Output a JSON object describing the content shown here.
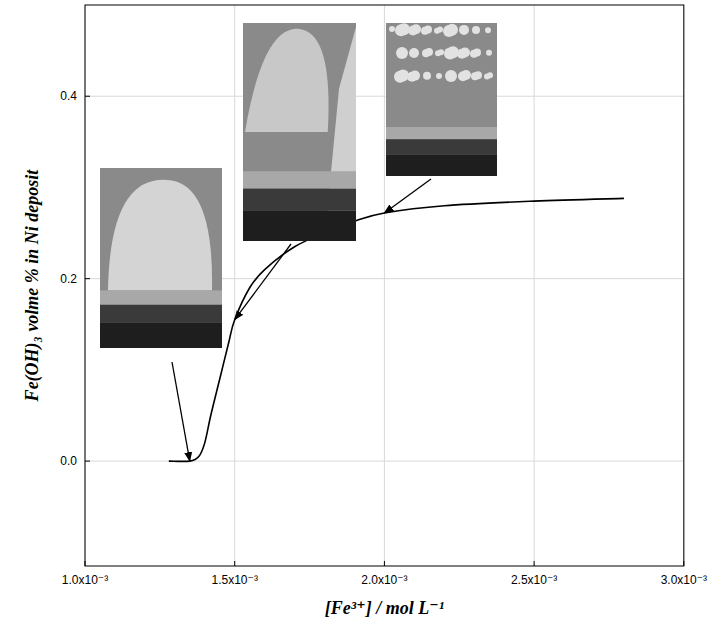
{
  "chart_data": {
    "type": "line",
    "xlabel": "[Fe³⁺] / mol L⁻¹",
    "ylabel": "Fe(OH)₃ volme % in Ni deposit",
    "x": [
      0.00128,
      0.00135,
      0.00138,
      0.0014,
      0.00142,
      0.00145,
      0.00148,
      0.0015,
      0.00155,
      0.0016,
      0.0017,
      0.0018,
      0.0019,
      0.002,
      0.0022,
      0.0025,
      0.0028
    ],
    "series": [
      {
        "color": "#000000",
        "values": [
          0,
          0,
          0.005,
          0.02,
          0.05,
          0.09,
          0.13,
          0.155,
          0.19,
          0.21,
          0.235,
          0.25,
          0.263,
          0.272,
          0.28,
          0.285,
          0.288
        ]
      }
    ],
    "xlim": [
      0.001,
      0.003
    ],
    "xticks": [
      {
        "value": 0.001,
        "label": "1.0x10⁻³"
      },
      {
        "value": 0.0015,
        "label": "1.5x10⁻³"
      },
      {
        "value": 0.002,
        "label": "2.0x10⁻³"
      },
      {
        "value": 0.0025,
        "label": "2.5x10⁻³"
      },
      {
        "value": 0.003,
        "label": "3.0x10⁻³"
      }
    ],
    "ylim": [
      -0.115,
      0.5
    ],
    "yticks": [
      {
        "value": 0,
        "label": "0.0"
      },
      0.2,
      0.4
    ],
    "grid": true
  }
}
